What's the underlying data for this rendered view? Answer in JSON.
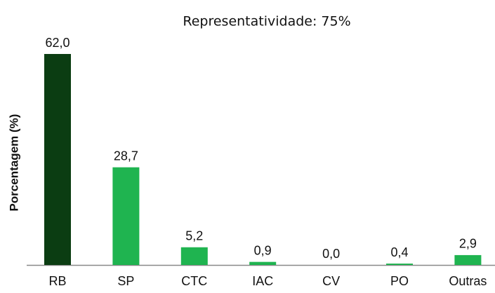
{
  "chart_data": {
    "type": "bar",
    "title": "Representatividade: 75%",
    "y_label": "Porcentagem (%)",
    "categories": [
      "RB",
      "SP",
      "CTC",
      "IAC",
      "CV",
      "PO",
      "Outras"
    ],
    "values": [
      62.0,
      28.7,
      5.2,
      0.9,
      0.0,
      0.4,
      2.9
    ],
    "value_labels": [
      "62,0",
      "28,7",
      "5,2",
      "0,9",
      "0,0",
      "0,4",
      "2,9"
    ],
    "colors": [
      "#0b3d12",
      "#1fb450",
      "#1fb450",
      "#1fb450",
      "#1fb450",
      "#1fb450",
      "#1fb450"
    ]
  }
}
